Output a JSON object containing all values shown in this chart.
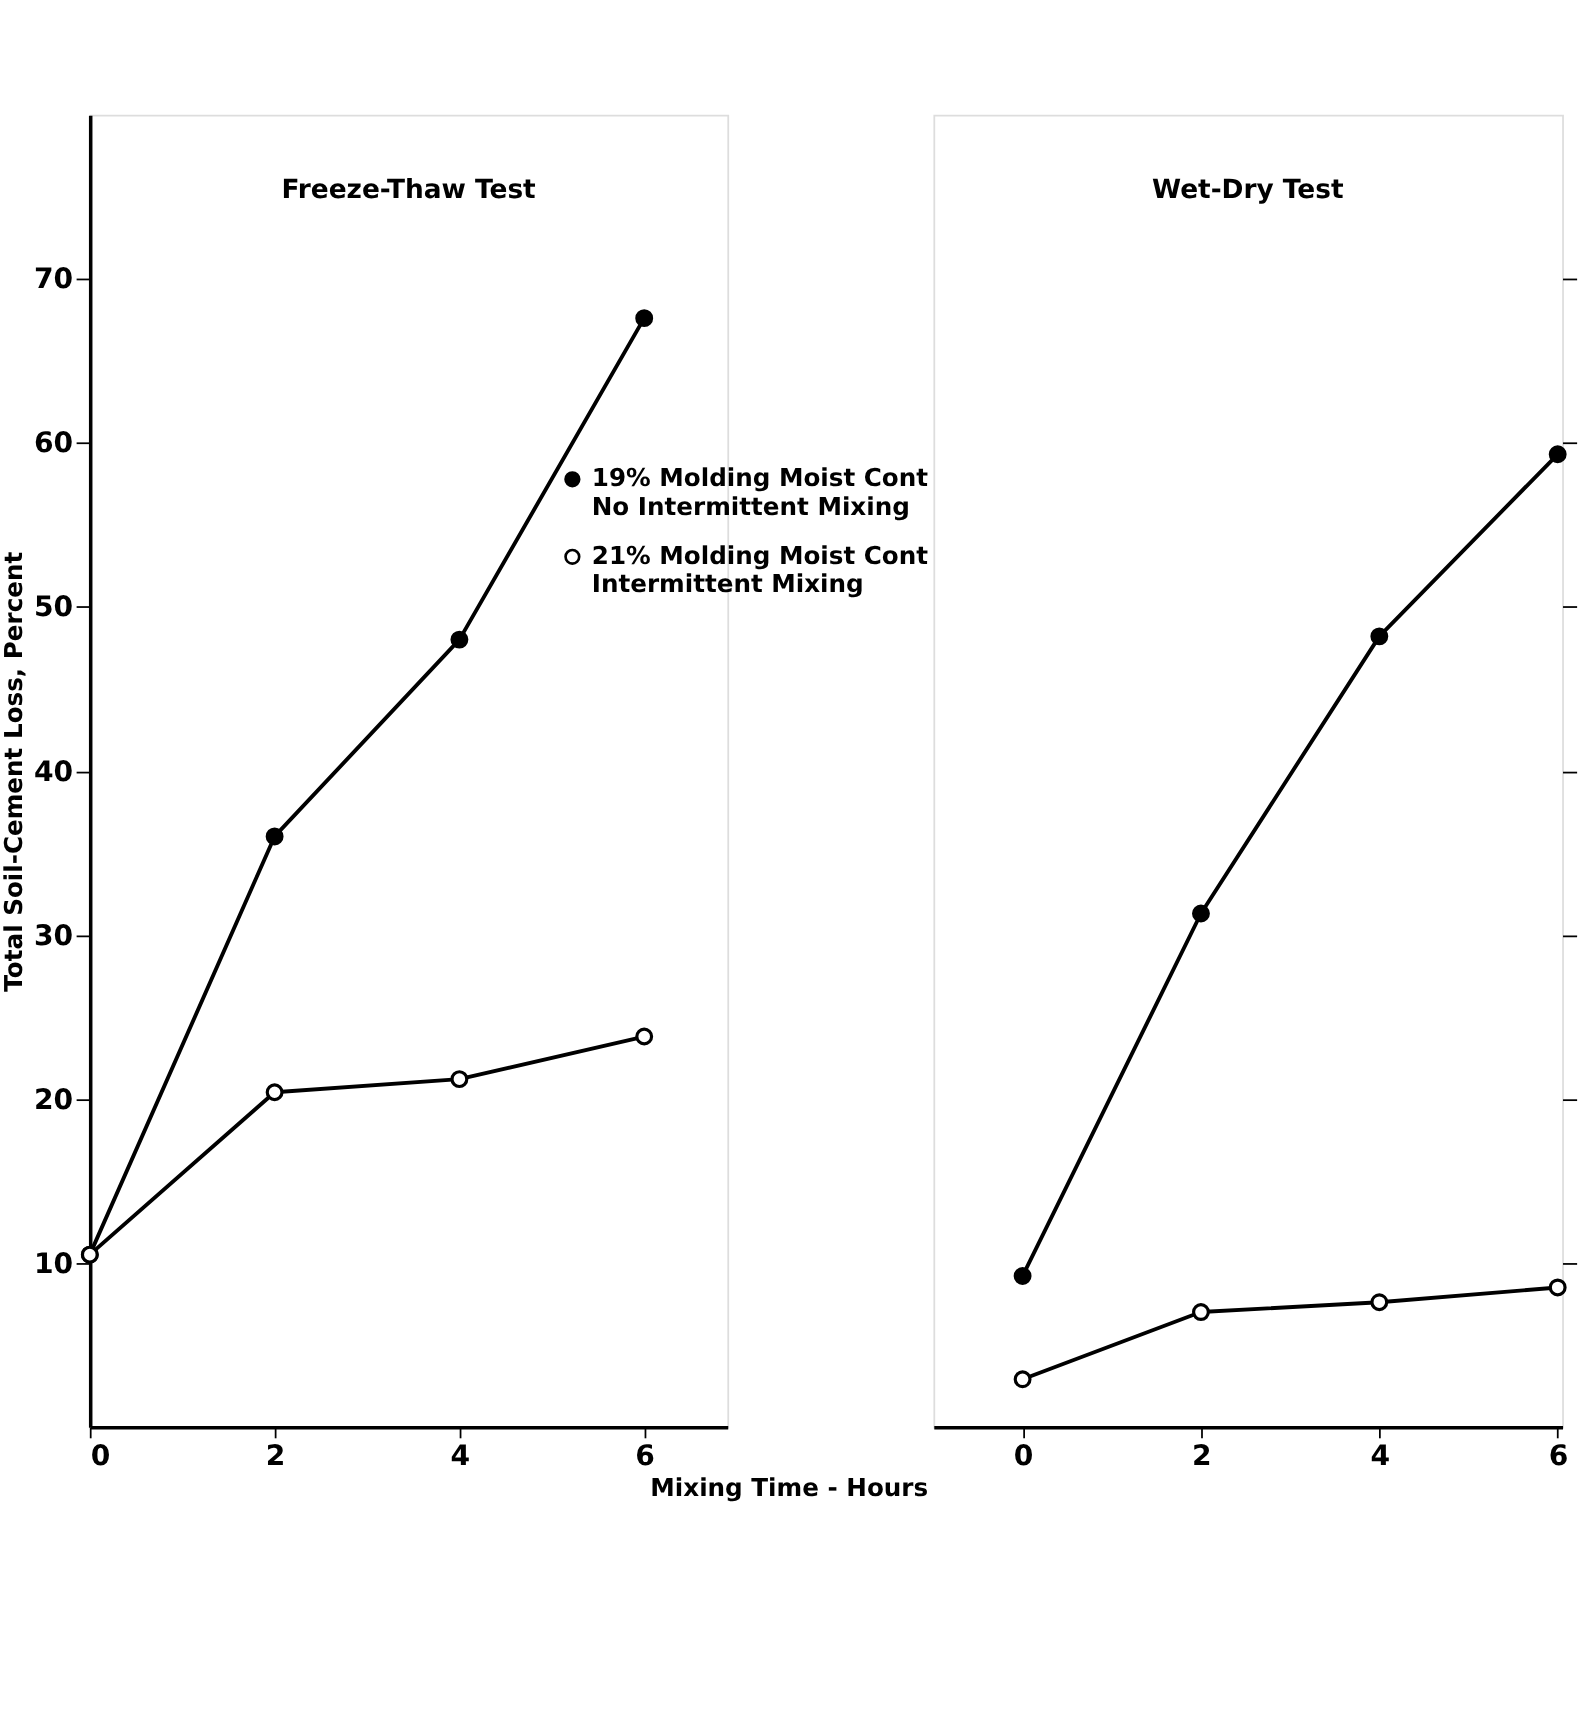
{
  "chart_data": [
    {
      "type": "line",
      "title": "Freeze-Thaw Test",
      "xlabel": "Mixing Time - Hours",
      "ylabel": "Total Soil-Cement Loss, Percent",
      "x": [
        0,
        2,
        4,
        6
      ],
      "xlim": [
        0,
        6.9
      ],
      "xticks": [
        0,
        2,
        4,
        6
      ],
      "ylim": [
        0,
        80
      ],
      "yticks": [
        10,
        20,
        30,
        40,
        50,
        60,
        70
      ],
      "marker": "circle",
      "grid": false,
      "legend": "top right",
      "series": [
        {
          "name": "19% Molding Moist Cont\nNo Intermittent Mixing",
          "color": "#000000",
          "values": [
            10.5,
            36,
            48,
            67.6
          ]
        },
        {
          "name": "21% Molding Moist Cont\nIntermittent Mixing",
          "color": "#000000",
          "values": [
            10.5,
            20.4,
            21.2,
            23.8
          ]
        }
      ]
    },
    {
      "type": "line",
      "title": "Wet-Dry Test",
      "x": [
        0,
        2,
        4,
        6
      ],
      "xlim": [
        -1,
        6.05
      ],
      "xticks": [
        0,
        2,
        4,
        6
      ],
      "ylim": [
        0,
        80
      ],
      "yticks": [
        10,
        20,
        30,
        40,
        50,
        60,
        70
      ],
      "tick_labels": "x",
      "marker": "circle",
      "grid": false,
      "series": [
        {
          "color": "#000000",
          "values": [
            9.2,
            31.3,
            48.2,
            59.3
          ]
        },
        {
          "color": "#000000",
          "values": [
            2.9,
            7.0,
            7.6,
            8.5
          ]
        }
      ]
    }
  ]
}
